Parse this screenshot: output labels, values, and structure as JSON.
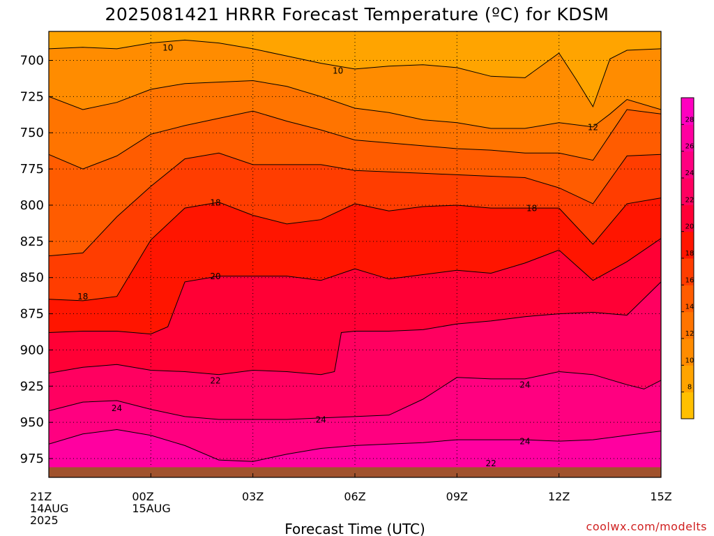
{
  "page": {
    "title": "2025081421 HRRR Forecast Temperature (ºC) for KDSM",
    "x_axis_label": "Forecast Time (UTC)",
    "credit": "coolwx.com/modelts"
  },
  "chart_data": {
    "type": "contour",
    "title": "2025081421 HRRR Forecast Temperature (ºC) for KDSM",
    "xlabel": "Forecast Time (UTC)",
    "ylabel": "",
    "x_ticks": [
      {
        "hour": 0,
        "lines": [
          "21Z",
          "14AUG",
          "2025"
        ]
      },
      {
        "hour": 3,
        "lines": [
          "00Z",
          "15AUG"
        ]
      },
      {
        "hour": 6,
        "lines": [
          "03Z"
        ]
      },
      {
        "hour": 9,
        "lines": [
          "06Z"
        ]
      },
      {
        "hour": 12,
        "lines": [
          "09Z"
        ]
      },
      {
        "hour": 15,
        "lines": [
          "12Z"
        ]
      },
      {
        "hour": 18,
        "lines": [
          "15Z"
        ]
      }
    ],
    "xlim_hours": [
      0,
      18
    ],
    "y_ticks_hpa": [
      700,
      725,
      750,
      775,
      800,
      825,
      850,
      875,
      900,
      925,
      950,
      975
    ],
    "ylim_hpa": [
      680,
      988
    ],
    "surface_pressure_hpa": 981,
    "grid": "dotted",
    "contour_interval": 2,
    "levels": [
      8,
      10,
      12,
      14,
      16,
      18,
      20,
      22,
      24,
      26,
      28
    ],
    "colorbar": {
      "ticks": [
        "8",
        "10",
        "12",
        "14",
        "16",
        "18",
        "20",
        "22",
        "24",
        "26",
        "28"
      ],
      "colors": [
        "#ffc000",
        "#ffa400",
        "#ff8c00",
        "#ff7400",
        "#ff5c00",
        "#ff3d00",
        "#ff1500",
        "#ff0035",
        "#ff0060",
        "#ff0080",
        "#ff00a0",
        "#ff00c0"
      ],
      "placement": "right"
    },
    "contour_labels": [
      {
        "text": "10",
        "hour": 3.5,
        "hpa": 691
      },
      {
        "text": "10",
        "hour": 8.5,
        "hpa": 707
      },
      {
        "text": "12",
        "hour": 16.0,
        "hpa": 746
      },
      {
        "text": "18",
        "hour": 4.9,
        "hpa": 798
      },
      {
        "text": "18",
        "hour": 14.2,
        "hpa": 802
      },
      {
        "text": "18",
        "hour": 1.0,
        "hpa": 863
      },
      {
        "text": "20",
        "hour": 4.9,
        "hpa": 849
      },
      {
        "text": "22",
        "hour": 4.9,
        "hpa": 921
      },
      {
        "text": "24",
        "hour": 2.0,
        "hpa": 940
      },
      {
        "text": "24",
        "hour": 8.0,
        "hpa": 948
      },
      {
        "text": "24",
        "hour": 14.0,
        "hpa": 924
      },
      {
        "text": "24",
        "hour": 14.0,
        "hpa": 963
      },
      {
        "text": "22",
        "hour": 13.0,
        "hpa": 978
      }
    ],
    "series": [
      {
        "name": "10",
        "x": [
          0,
          1,
          2,
          3,
          4,
          5,
          6,
          7,
          8,
          9,
          10,
          11,
          12,
          13,
          14,
          15,
          15.5,
          16,
          16.5,
          17,
          18
        ],
        "y": [
          692,
          691,
          692,
          688,
          686,
          688,
          692,
          697,
          702,
          706,
          704,
          703,
          705,
          711,
          712,
          695,
          713,
          732,
          699,
          693,
          692
        ]
      },
      {
        "name": "12",
        "x": [
          0,
          1,
          2,
          3,
          4,
          5,
          6,
          7,
          8,
          9,
          10,
          11,
          12,
          13,
          14,
          15,
          16,
          16.5,
          17,
          18
        ],
        "y": [
          725,
          734,
          729,
          720,
          716,
          715,
          714,
          718,
          725,
          733,
          736,
          741,
          743,
          747,
          747,
          743,
          746,
          737,
          727,
          734
        ]
      },
      {
        "name": "14",
        "x": [
          0,
          1,
          2,
          3,
          4,
          5,
          6,
          7,
          8,
          9,
          10,
          11,
          12,
          13,
          14,
          15,
          16,
          17,
          18
        ],
        "y": [
          765,
          775,
          766,
          751,
          745,
          740,
          735,
          742,
          748,
          755,
          757,
          759,
          761,
          762,
          764,
          764,
          769,
          734,
          737
        ]
      },
      {
        "name": "16",
        "x": [
          0,
          1,
          2,
          3,
          4,
          5,
          6,
          7,
          8,
          9,
          10,
          11,
          12,
          13,
          14,
          15,
          16,
          17,
          18
        ],
        "y": [
          835,
          833,
          808,
          787,
          768,
          764,
          772,
          772,
          772,
          776,
          777,
          778,
          779,
          780,
          781,
          788,
          799,
          766,
          765
        ]
      },
      {
        "name": "18",
        "x": [
          0,
          1,
          2,
          3,
          4,
          5,
          6,
          7,
          8,
          9,
          10,
          11,
          12,
          13,
          14,
          15,
          16,
          17,
          18
        ],
        "y": [
          865,
          866,
          863,
          824,
          802,
          798,
          807,
          813,
          810,
          799,
          804,
          801,
          800,
          802,
          802,
          802,
          827,
          799,
          795
        ]
      },
      {
        "name": "20",
        "x": [
          0,
          1,
          2,
          3,
          3.5,
          4,
          5,
          6,
          7,
          8,
          9,
          10,
          11,
          12,
          13,
          14,
          15,
          16,
          17,
          18
        ],
        "y": [
          888,
          887,
          887,
          889,
          884,
          853,
          849,
          849,
          849,
          852,
          844,
          851,
          848,
          845,
          847,
          840,
          831,
          852,
          839,
          823
        ]
      },
      {
        "name": "22",
        "x": [
          0,
          1,
          2,
          3,
          4,
          5,
          6,
          7,
          8,
          8.4,
          8.6,
          9,
          10,
          11,
          12,
          13,
          14,
          15,
          16,
          17,
          18
        ],
        "y": [
          916,
          912,
          910,
          914,
          915,
          917,
          914,
          915,
          917,
          915,
          888,
          887,
          887,
          886,
          882,
          880,
          877,
          875,
          874,
          876,
          853
        ]
      },
      {
        "name": "24",
        "x": [
          0,
          1,
          2,
          3,
          4,
          5,
          6,
          7,
          8,
          9,
          10,
          11,
          12,
          13,
          14,
          15,
          16,
          17,
          17.5,
          18
        ],
        "y": [
          942,
          936,
          935,
          941,
          946,
          948,
          948,
          948,
          947,
          946,
          945,
          934,
          919,
          920,
          920,
          915,
          917,
          924,
          927,
          921
        ]
      },
      {
        "name": "24 (lower)",
        "x": [
          0,
          1,
          2,
          3,
          4,
          5,
          6,
          7,
          8,
          9,
          10,
          11,
          12,
          13,
          14,
          15,
          16,
          17,
          18
        ],
        "y": [
          965,
          958,
          955,
          959,
          966,
          976,
          977,
          972,
          968,
          966,
          965,
          964,
          962,
          962,
          962,
          963,
          962,
          959,
          956
        ]
      }
    ]
  }
}
